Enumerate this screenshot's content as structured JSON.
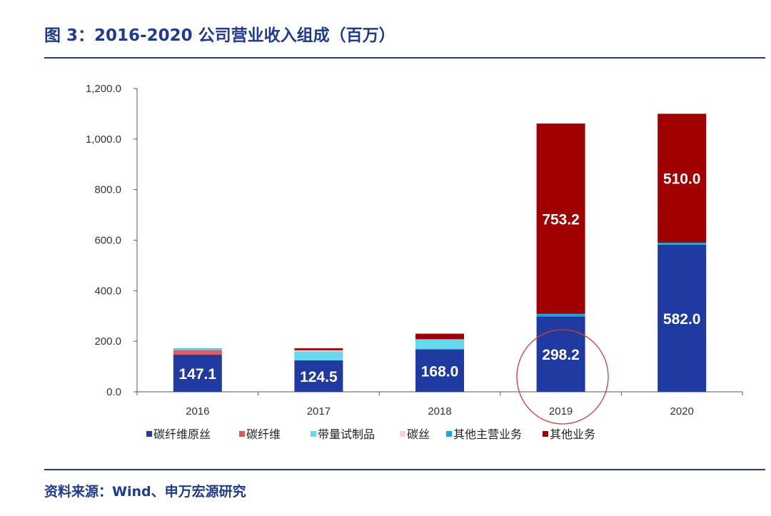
{
  "title": "图 3：2016-2020 公司营业收入组成（百万）",
  "source": "资料来源：Wind、申万宏源研究",
  "chart_data": {
    "type": "bar",
    "stacked": true,
    "categories": [
      "2016",
      "2017",
      "2018",
      "2019",
      "2020"
    ],
    "ylim": [
      0,
      1200
    ],
    "yticks": [
      "0.0",
      "200.0",
      "400.0",
      "600.0",
      "800.0",
      "1,000.0",
      "1,200.0"
    ],
    "legend_position": "bottom",
    "series": [
      {
        "name": "碳纤维原丝",
        "color": "#1f3aa0",
        "values": [
          147.1,
          124.5,
          168.0,
          298.2,
          582.0
        ],
        "labels": [
          "147.1",
          "124.5",
          "168.0",
          "298.2",
          "582.0"
        ]
      },
      {
        "name": "碳纤维",
        "color": "#e05a5a",
        "values": [
          18,
          0,
          0,
          0,
          0
        ]
      },
      {
        "name": "带量试制品",
        "color": "#66d9ee",
        "values": [
          5,
          35,
          40,
          0,
          0
        ]
      },
      {
        "name": "碳丝",
        "color": "#f4d2d9",
        "values": [
          0,
          5,
          0,
          0,
          0
        ]
      },
      {
        "name": "其他主营业务",
        "color": "#1aa7dd",
        "values": [
          2,
          0,
          0,
          10,
          8
        ]
      },
      {
        "name": "其他业务",
        "color": "#a00000",
        "values": [
          0,
          8,
          22,
          753.2,
          510.0
        ],
        "labels": [
          "",
          "",
          "",
          "753.2",
          "510.0"
        ]
      }
    ],
    "annotation": "red circle around 2019 bar"
  }
}
